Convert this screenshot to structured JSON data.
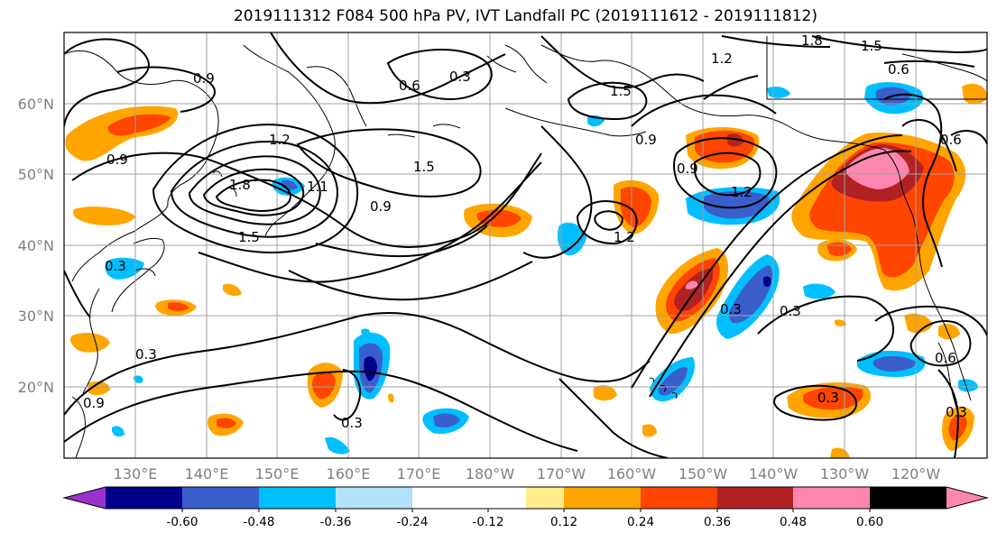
{
  "title": "2019111312 F084 500 hPa PV, IVT Landfall PC (2019111612 - 2019111812)",
  "lat_labels": [
    "60°N",
    "50°N",
    "40°N",
    "30°N",
    "20°N"
  ],
  "lon_labels": [
    "130°E",
    "140°E",
    "150°E",
    "160°E",
    "170°E",
    "180°W",
    "170°W",
    "160°W",
    "150°W",
    "140°W",
    "130°W",
    "120°W"
  ],
  "colorbar": {
    "colors": [
      "#9932cc",
      "#00008b",
      "#3a5fcd",
      "#00bfff",
      "#b2e2fa",
      "#ffffff",
      "#ffffff",
      "#ffec8b",
      "#ffa500",
      "#ff4500",
      "#b22222",
      "#ff86b0"
    ],
    "tick_labels": [
      "-0.60",
      "-0.48",
      "-0.36",
      "-0.24",
      "-0.12",
      "0.12",
      "0.24",
      "0.36",
      "0.48",
      "0.60"
    ]
  },
  "contour_labels": [
    "0.9",
    "0.6",
    "0.3",
    "1.2",
    "1.5",
    "1.8",
    "0.9",
    "1.5",
    "1.2",
    "1.5",
    "0.9",
    "1.2",
    "0.6",
    "0.9",
    "1.2",
    "0.3",
    "0.3",
    "0.3",
    "0.3",
    "0.3",
    "0.3",
    "0.6",
    "0.9",
    "1.1",
    "1.8",
    "1.5",
    "0.6",
    "0.9",
    "0.3"
  ]
}
